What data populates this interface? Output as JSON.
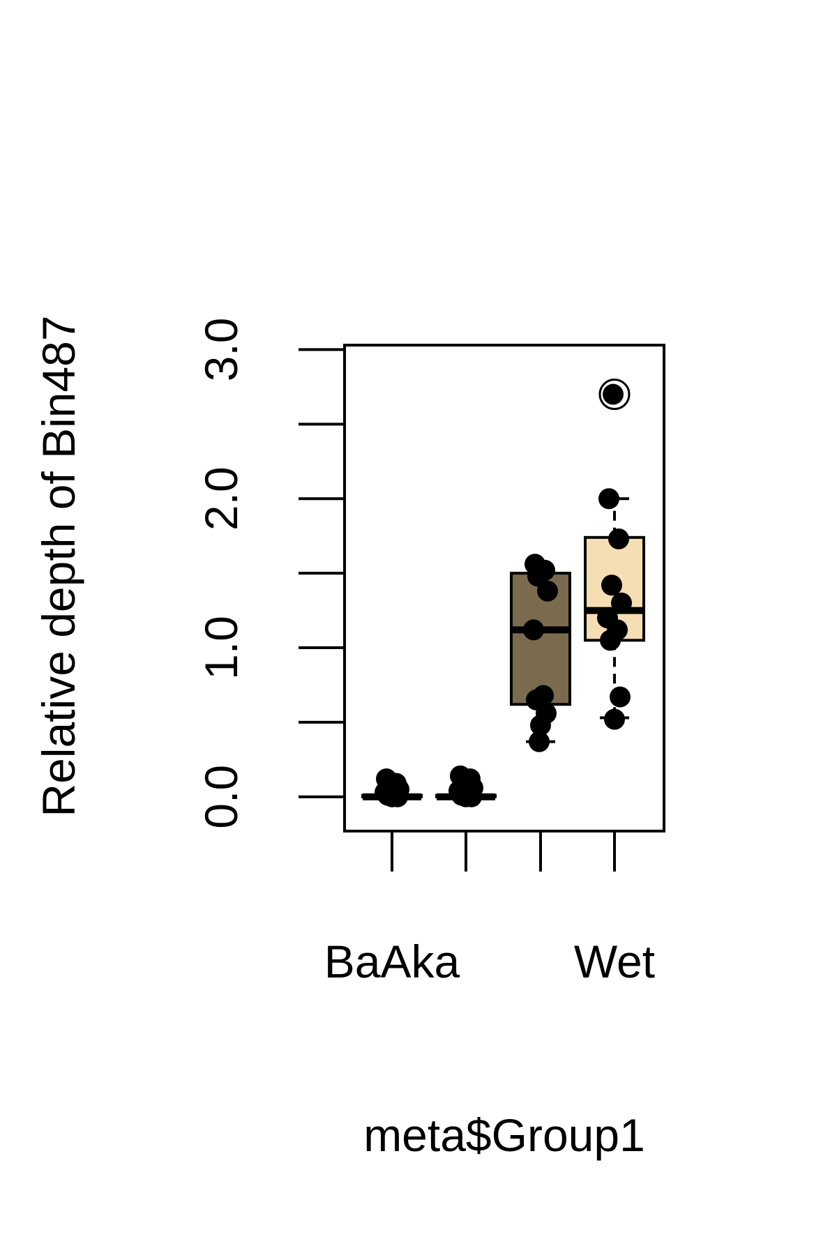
{
  "chart_data": {
    "type": "box",
    "xlabel": "meta$Group1",
    "ylabel": "Relative depth of Bin487",
    "ylim": [
      -0.23,
      3.03
    ],
    "yticks": [
      0,
      0.5,
      1,
      1.5,
      2,
      2.5,
      3
    ],
    "ytick_labels": [
      "0.0",
      "",
      "1.0",
      "",
      "2.0",
      "",
      "3.0"
    ],
    "categories": [
      "BaAka",
      "",
      "",
      "Wet"
    ],
    "groups": [
      {
        "fill": "#ffffff",
        "min": 0.0,
        "q1": 0.0,
        "median": 0.0,
        "q3": 0.01,
        "max": 0.02,
        "points": [
          0.12,
          0.09,
          0.07,
          0.05,
          0.03,
          0.02,
          0.01,
          0.0,
          0.0
        ]
      },
      {
        "fill": "#ffffff",
        "min": 0.0,
        "q1": 0.0,
        "median": 0.0,
        "q3": 0.01,
        "max": 0.02,
        "points": [
          0.14,
          0.12,
          0.09,
          0.06,
          0.04,
          0.02,
          0.01,
          0.0,
          0.0
        ]
      },
      {
        "fill": "#7a6b4f",
        "min": 0.37,
        "q1": 0.62,
        "median": 1.12,
        "q3": 1.5,
        "max": 1.5,
        "points": [
          1.56,
          1.52,
          1.48,
          1.38,
          1.12,
          0.68,
          0.65,
          0.56,
          0.48,
          0.37
        ]
      },
      {
        "fill": "#f5deb3",
        "min": 0.53,
        "q1": 1.05,
        "median": 1.25,
        "q3": 1.74,
        "max": 2.0,
        "points": [
          2.0,
          1.73,
          1.42,
          1.3,
          1.2,
          1.12,
          1.05,
          0.67,
          0.52
        ],
        "outliers": [
          2.7
        ]
      }
    ]
  }
}
